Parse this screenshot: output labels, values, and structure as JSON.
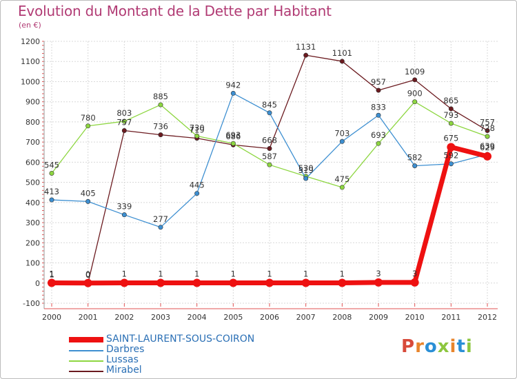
{
  "title": "Evolution du Montant de la Dette par Habitant",
  "unit_label": "(en €)",
  "logo_text": "Proxiti",
  "chart_data": {
    "type": "line",
    "title": "Evolution du Montant de la Dette par Habitant",
    "ylabel": "(en €)",
    "xlabel": "",
    "ylim": [
      -100,
      1200
    ],
    "yticks": [
      -100,
      0,
      100,
      200,
      300,
      400,
      500,
      600,
      700,
      800,
      900,
      1000,
      1100,
      1200
    ],
    "categories": [
      "2000",
      "2001",
      "2002",
      "2003",
      "2004",
      "2005",
      "2006",
      "2007",
      "2008",
      "2009",
      "2010",
      "2011",
      "2012"
    ],
    "grid": true,
    "legend_position": "bottom-left",
    "series": [
      {
        "name": "Mirabel",
        "color": "#6b1a1f",
        "values": [
          1,
          0,
          757,
          736,
          719,
          686,
          668,
          1131,
          1101,
          957,
          1009,
          865,
          757
        ]
      },
      {
        "name": "Lussas",
        "color": "#8dd640",
        "values": [
          545,
          780,
          803,
          885,
          730,
          693,
          587,
          530,
          475,
          693,
          900,
          793,
          728
        ]
      },
      {
        "name": "Darbres",
        "color": "#3d8fd1",
        "values": [
          413,
          405,
          339,
          277,
          445,
          942,
          845,
          519,
          703,
          833,
          582,
          592,
          639
        ]
      },
      {
        "name": "SAINT-LAURENT-SOUS-COIRON",
        "color": "#ee1111",
        "values": [
          1,
          0,
          1,
          1,
          1,
          1,
          1,
          1,
          1,
          3,
          3,
          675,
          629
        ]
      }
    ]
  }
}
